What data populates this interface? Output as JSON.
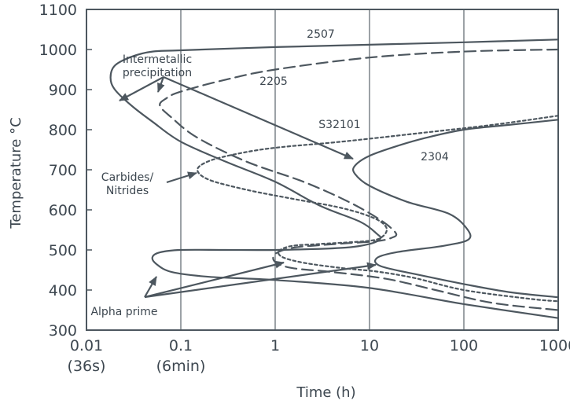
{
  "chart_data": {
    "type": "line",
    "title": "",
    "xlabel": "Time (h)",
    "ylabel": "Temperature °C",
    "xscale": "log",
    "xlim": [
      0.01,
      1000
    ],
    "ylim": [
      300,
      1100
    ],
    "grid": "vertical lines at decades",
    "x_ticks": [
      {
        "value": 0.01,
        "label": "0.01",
        "sublabel": "(36s)"
      },
      {
        "value": 0.1,
        "label": "0.1",
        "sublabel": "(6min)"
      },
      {
        "value": 1,
        "label": "1",
        "sublabel": ""
      },
      {
        "value": 10,
        "label": "10",
        "sublabel": ""
      },
      {
        "value": 100,
        "label": "100",
        "sublabel": ""
      },
      {
        "value": 1000,
        "label": "1000",
        "sublabel": ""
      }
    ],
    "y_ticks": [
      300,
      400,
      500,
      600,
      700,
      800,
      900,
      1000,
      1100
    ],
    "series": [
      {
        "name": "2507",
        "style": "solid",
        "points": [
          [
            1000,
            1025
          ],
          [
            100,
            1018
          ],
          [
            10,
            1012
          ],
          [
            1,
            1006
          ],
          [
            0.1,
            998
          ],
          [
            0.05,
            995
          ],
          [
            0.03,
            982
          ],
          [
            0.02,
            960
          ],
          [
            0.018,
            930
          ],
          [
            0.02,
            900
          ],
          [
            0.03,
            860
          ],
          [
            0.05,
            820
          ],
          [
            0.1,
            770
          ],
          [
            0.3,
            720
          ],
          [
            1,
            670
          ],
          [
            3,
            610
          ],
          [
            8,
            570
          ],
          [
            12,
            540
          ],
          [
            13,
            528
          ],
          [
            10,
            515
          ],
          [
            5,
            505
          ],
          [
            1,
            500
          ],
          [
            0.3,
            500
          ],
          [
            0.1,
            500
          ],
          [
            0.06,
            494
          ],
          [
            0.05,
            482
          ],
          [
            0.055,
            465
          ],
          [
            0.08,
            445
          ],
          [
            0.2,
            433
          ],
          [
            1,
            425
          ],
          [
            10,
            405
          ],
          [
            100,
            365
          ],
          [
            1000,
            330
          ]
        ]
      },
      {
        "name": "2205",
        "style": "dashed",
        "points": [
          [
            1000,
            1000
          ],
          [
            100,
            995
          ],
          [
            10,
            980
          ],
          [
            1,
            950
          ],
          [
            0.3,
            925
          ],
          [
            0.1,
            895
          ],
          [
            0.07,
            878
          ],
          [
            0.06,
            860
          ],
          [
            0.08,
            830
          ],
          [
            0.15,
            780
          ],
          [
            0.5,
            720
          ],
          [
            2,
            670
          ],
          [
            6,
            620
          ],
          [
            13,
            575
          ],
          [
            19,
            542
          ],
          [
            17,
            530
          ],
          [
            12,
            522
          ],
          [
            6,
            517
          ],
          [
            3,
            512
          ],
          [
            1.5,
            505
          ],
          [
            1,
            490
          ],
          [
            1,
            470
          ],
          [
            1.5,
            455
          ],
          [
            4,
            445
          ],
          [
            15,
            428
          ],
          [
            50,
            400
          ],
          [
            200,
            368
          ],
          [
            1000,
            350
          ]
        ]
      },
      {
        "name": "S32101",
        "style": "dotted",
        "points": [
          [
            1000,
            835
          ],
          [
            200,
            812
          ],
          [
            30,
            790
          ],
          [
            5,
            770
          ],
          [
            1,
            755
          ],
          [
            0.4,
            740
          ],
          [
            0.2,
            722
          ],
          [
            0.15,
            700
          ],
          [
            0.2,
            675
          ],
          [
            0.5,
            650
          ],
          [
            1.5,
            628
          ],
          [
            5,
            605
          ],
          [
            11,
            580
          ],
          [
            15,
            557
          ],
          [
            14,
            535
          ],
          [
            10,
            523
          ],
          [
            3,
            515
          ],
          [
            1.5,
            510
          ],
          [
            1.1,
            497
          ],
          [
            1.2,
            482
          ],
          [
            2,
            468
          ],
          [
            5,
            455
          ],
          [
            12,
            446
          ],
          [
            30,
            430
          ],
          [
            100,
            400
          ],
          [
            500,
            378
          ],
          [
            1000,
            372
          ]
        ]
      },
      {
        "name": "2304",
        "style": "solid",
        "points": [
          [
            1000,
            825
          ],
          [
            300,
            812
          ],
          [
            100,
            800
          ],
          [
            40,
            780
          ],
          [
            20,
            760
          ],
          [
            10,
            735
          ],
          [
            7,
            710
          ],
          [
            7,
            690
          ],
          [
            10,
            660
          ],
          [
            25,
            620
          ],
          [
            70,
            590
          ],
          [
            110,
            550
          ],
          [
            110,
            525
          ],
          [
            60,
            510
          ],
          [
            20,
            495
          ],
          [
            12,
            480
          ],
          [
            13,
            460
          ],
          [
            30,
            440
          ],
          [
            100,
            415
          ],
          [
            300,
            395
          ],
          [
            1000,
            382
          ]
        ]
      }
    ],
    "annotations": [
      {
        "text": "2507"
      },
      {
        "text": "2205"
      },
      {
        "text": "S32101"
      },
      {
        "text": "2304"
      },
      {
        "text": "Intermetallic precipitation"
      },
      {
        "text": "Carbides/ Nitrides"
      },
      {
        "text": "Alpha prime"
      }
    ]
  }
}
